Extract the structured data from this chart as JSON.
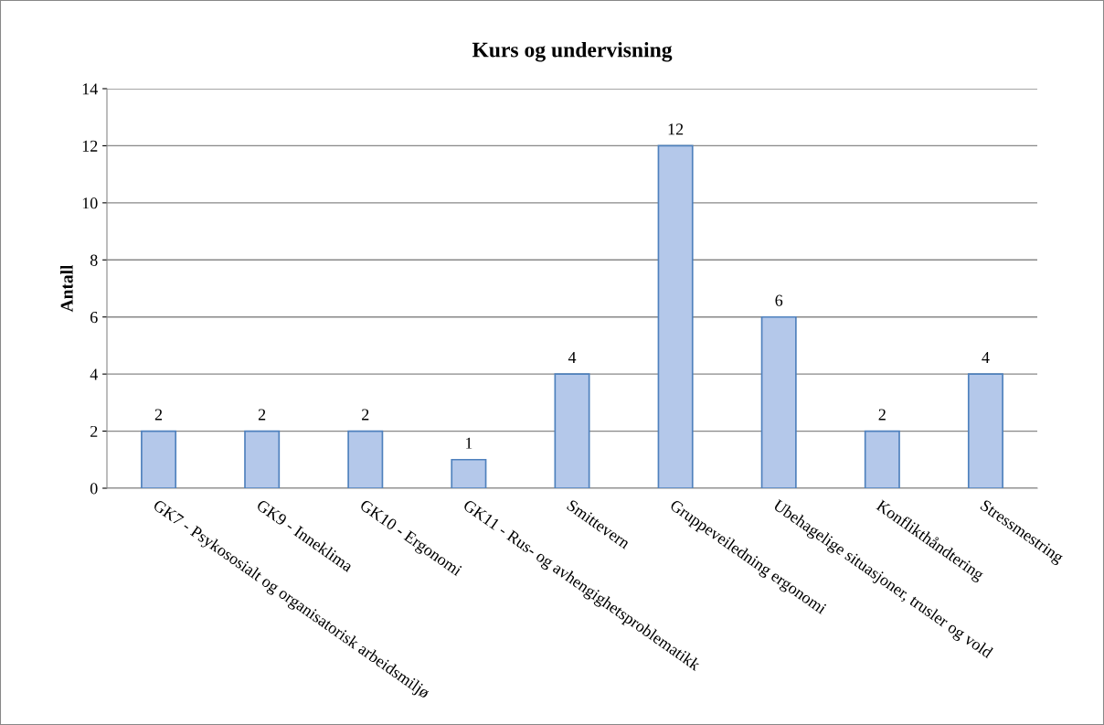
{
  "chart_data": {
    "type": "bar",
    "title": "Kurs og undervisning",
    "ylabel": "Antall",
    "categories": [
      "GK7 - Psykososialt og organisatorisk arbeidsmiljø",
      "GK9 - Inneklima",
      "GK10 - Ergonomi",
      "GK11 - Rus- og avhengighetsproblematikk",
      "Smittevern",
      "Gruppeveiledning ergonomi",
      "Ubehagelige situasjoner, trusler og vold",
      "Konflikthåndtering",
      "Stressmestring"
    ],
    "values": [
      2,
      2,
      2,
      1,
      4,
      12,
      6,
      2,
      4
    ],
    "color": "#b4c8ea",
    "ylim": [
      0,
      14
    ],
    "yticks": [
      0,
      2,
      4,
      6,
      8,
      10,
      12,
      14
    ],
    "grid": "y",
    "data_labels": true
  }
}
